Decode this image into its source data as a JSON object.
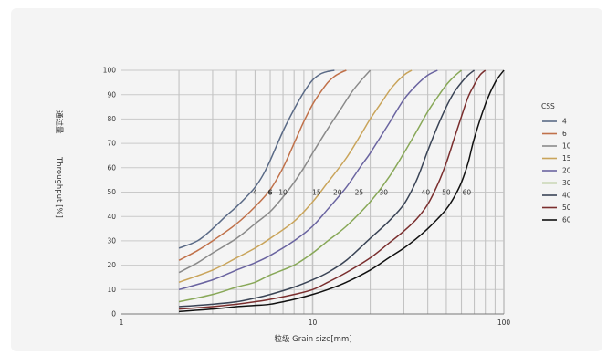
{
  "chart_data": {
    "type": "line",
    "title": "",
    "xlabel": "粒级 Grain size[mm]",
    "ylabel_cn": "通过量",
    "ylabel_en": "Throughput [%]",
    "x_scale": "log",
    "xlim": [
      1,
      100
    ],
    "ylim": [
      0,
      100
    ],
    "x_tick_labels": [
      {
        "value": 1,
        "label": "1"
      },
      {
        "value": 10,
        "label": "10"
      },
      {
        "value": 100,
        "label": "100"
      }
    ],
    "y_ticks": [
      0,
      10,
      20,
      30,
      40,
      50,
      60,
      70,
      80,
      90,
      100
    ],
    "grid": true,
    "legend_title": "CSS",
    "legend_position": "right",
    "size_labels": [
      {
        "text": "4",
        "x": 5.0,
        "y": 50,
        "bold": false
      },
      {
        "text": "6",
        "x": 6.0,
        "y": 50,
        "bold": true
      },
      {
        "text": "10",
        "x": 7.0,
        "y": 50,
        "bold": false
      },
      {
        "text": "15",
        "x": 10.5,
        "y": 50,
        "bold": false
      },
      {
        "text": "20",
        "x": 13.5,
        "y": 50,
        "bold": false
      },
      {
        "text": "25",
        "x": 17.5,
        "y": 50,
        "bold": false
      },
      {
        "text": "30",
        "x": 23.5,
        "y": 50,
        "bold": false
      },
      {
        "text": "40",
        "x": 39,
        "y": 50,
        "bold": false
      },
      {
        "text": "50",
        "x": 50,
        "y": 50,
        "bold": false
      },
      {
        "text": "60",
        "x": 64,
        "y": 50,
        "bold": false
      }
    ],
    "series": [
      {
        "name": "4",
        "color": "#5a6a86",
        "x": [
          2.0,
          2.5,
          3.0,
          3.5,
          4.0,
          4.5,
          5.0,
          5.5,
          6.0,
          7.0,
          8.0,
          9.0,
          10.0,
          11.0,
          12.0,
          13.0
        ],
        "y": [
          27,
          30,
          35,
          40,
          44,
          48,
          52,
          57,
          63,
          75,
          84,
          91,
          96,
          98.5,
          99.5,
          100
        ]
      },
      {
        "name": "6",
        "color": "#c0714a",
        "x": [
          2.0,
          2.5,
          3.0,
          4.0,
          5.0,
          6.0,
          7.0,
          8.0,
          9.0,
          10.0,
          11.0,
          12.0,
          13.0,
          14.0,
          15.0
        ],
        "y": [
          22,
          26,
          30,
          37,
          44,
          51,
          60,
          70,
          79,
          86,
          91,
          95,
          97.5,
          99,
          100
        ]
      },
      {
        "name": "10",
        "color": "#8a8a8a",
        "x": [
          2.0,
          2.5,
          3.0,
          4.0,
          5.0,
          6.0,
          7.0,
          8.0,
          9.0,
          10.0,
          12.0,
          14.0,
          16.0,
          18.0,
          20.0
        ],
        "y": [
          17,
          21,
          25,
          31,
          37,
          42,
          48,
          54,
          60,
          66,
          76,
          84,
          91,
          96,
          100
        ]
      },
      {
        "name": "15",
        "color": "#c9a45a",
        "x": [
          2.0,
          3.0,
          4.0,
          5.0,
          6.0,
          8.0,
          10.0,
          12.0,
          15.0,
          18.0,
          20.0,
          23.0,
          26.0,
          30.0,
          33.0
        ],
        "y": [
          13,
          18,
          23,
          27,
          31,
          38,
          46,
          54,
          64,
          74,
          80,
          87,
          93,
          98,
          100
        ]
      },
      {
        "name": "20",
        "color": "#6a64a0",
        "x": [
          2.0,
          3.0,
          4.0,
          5.0,
          6.0,
          8.0,
          10.0,
          12.0,
          15.0,
          18.0,
          20.0,
          25.0,
          30.0,
          35.0,
          40.0,
          45.0
        ],
        "y": [
          10,
          14,
          18,
          21,
          24,
          30,
          36,
          43,
          52,
          61,
          66,
          78,
          88,
          94,
          98,
          100
        ]
      },
      {
        "name": "30",
        "color": "#88a858",
        "x": [
          2.0,
          3.0,
          4.0,
          5.0,
          6.0,
          8.0,
          10.0,
          12.0,
          15.0,
          20.0,
          25.0,
          30.0,
          35.0,
          40.0,
          45.0,
          50.0,
          55.0,
          60.0
        ],
        "y": [
          5,
          8,
          11,
          13,
          16,
          20,
          25,
          30,
          36,
          46,
          56,
          66,
          75,
          83,
          89,
          94,
          97.5,
          100
        ]
      },
      {
        "name": "40",
        "color": "#3a4456",
        "x": [
          2.0,
          3.0,
          4.0,
          5.0,
          6.0,
          8.0,
          10.0,
          12.0,
          15.0,
          20.0,
          25.0,
          30.0,
          35.0,
          40.0,
          45.0,
          50.0,
          55.0,
          60.0,
          65.0,
          70.0
        ],
        "y": [
          3,
          4,
          5,
          6.5,
          8,
          11,
          14,
          17,
          22,
          31,
          38,
          45,
          55,
          67,
          77,
          85,
          91,
          95,
          98,
          100
        ]
      },
      {
        "name": "50",
        "color": "#7a2e2e",
        "x": [
          2.0,
          3.0,
          4.0,
          5.0,
          6.0,
          8.0,
          10.0,
          12.0,
          15.0,
          20.0,
          25.0,
          30.0,
          35.0,
          40.0,
          45.0,
          50.0,
          55.0,
          60.0,
          65.0,
          70.0,
          75.0,
          80.0
        ],
        "y": [
          2,
          3,
          4,
          5,
          6,
          8,
          10,
          13,
          17,
          23,
          29,
          34,
          39,
          45,
          53,
          62,
          72,
          81,
          89,
          94,
          98,
          100
        ]
      },
      {
        "name": "60",
        "color": "#111111",
        "x": [
          2.0,
          3.0,
          4.0,
          5.0,
          6.0,
          8.0,
          10.0,
          12.0,
          15.0,
          20.0,
          25.0,
          30.0,
          35.0,
          40.0,
          45.0,
          50.0,
          55.0,
          60.0,
          65.0,
          70.0,
          80.0,
          90.0,
          100.0
        ],
        "y": [
          1,
          2,
          3,
          3.5,
          4,
          6,
          8,
          10,
          13,
          18,
          23,
          27,
          31,
          35,
          39,
          43,
          48,
          54,
          62,
          72,
          86,
          95,
          100
        ]
      }
    ]
  }
}
